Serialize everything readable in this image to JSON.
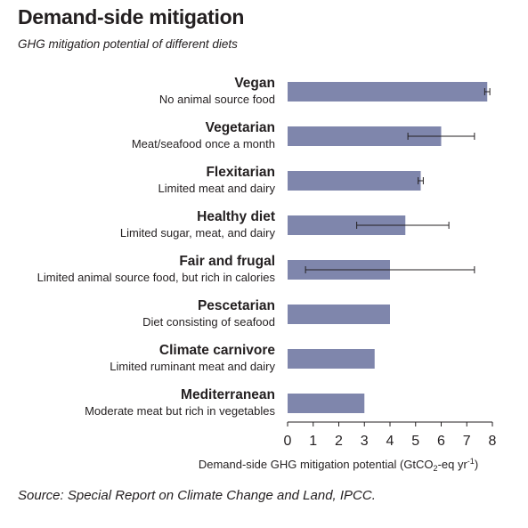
{
  "header": {
    "title": "Demand-side mitigation",
    "subtitle": "GHG mitigation potential of different diets"
  },
  "footer": {
    "source": "Source: Special Report on Climate Change and Land, IPCC."
  },
  "colors": {
    "bar": "#7f86ac",
    "error_bar": "#231f20",
    "axis": "#231f20"
  },
  "chart_data": {
    "type": "bar",
    "orientation": "horizontal",
    "categories": [
      "Vegan",
      "Vegetarian",
      "Flexitarian",
      "Healthy diet",
      "Fair and frugal",
      "Pescetarian",
      "Climate carnivore",
      "Mediterranean"
    ],
    "descriptions": [
      "No animal source food",
      "Meat/seafood once a month",
      "Limited meat and dairy",
      "Limited sugar, meat, and dairy",
      "Limited animal source food, but rich in calories",
      "Diet consisting of seafood",
      "Limited ruminant meat and dairy",
      "Moderate meat but rich in vegetables"
    ],
    "values": [
      7.8,
      6.0,
      5.2,
      4.6,
      4.0,
      4.0,
      3.4,
      3.0
    ],
    "error_low": [
      7.7,
      4.7,
      5.1,
      2.7,
      0.7,
      null,
      null,
      null
    ],
    "error_high": [
      7.9,
      7.3,
      5.3,
      6.3,
      7.3,
      null,
      null,
      null
    ],
    "xlim": [
      0,
      8
    ],
    "xticks": [
      "0",
      "1",
      "2",
      "3",
      "4",
      "5",
      "6",
      "7",
      "8"
    ],
    "xlabel_parts": [
      "Demand-side GHG mitigation potential (GtCO",
      "2",
      "-eq yr",
      "-1",
      ")"
    ],
    "grid": false,
    "legend": "none"
  }
}
